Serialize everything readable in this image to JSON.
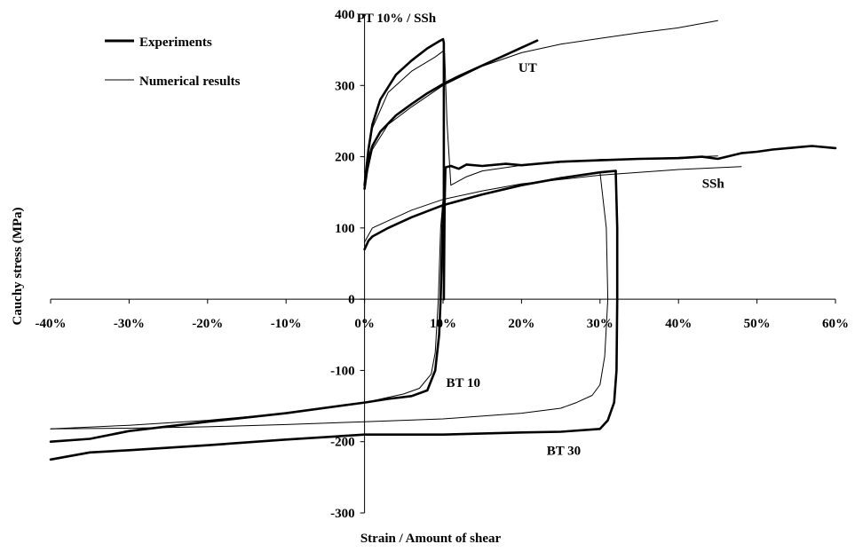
{
  "chart_data": {
    "type": "line",
    "xlabel": "Strain / Amount of shear",
    "ylabel": "Cauchy stress (MPa)",
    "xlim": [
      -0.4,
      0.6
    ],
    "ylim": [
      -300,
      400
    ],
    "x_ticks": [
      -0.4,
      -0.3,
      -0.2,
      -0.1,
      0.0,
      0.1,
      0.2,
      0.3,
      0.4,
      0.5,
      0.6
    ],
    "x_tick_labels": [
      "-40%",
      "-30%",
      "-20%",
      "-10%",
      "0%",
      "10%",
      "20%",
      "30%",
      "40%",
      "50%",
      "60%"
    ],
    "y_ticks": [
      -300,
      -200,
      -100,
      0,
      100,
      200,
      300,
      400
    ],
    "y_tick_labels": [
      "-300",
      "-200",
      "-100",
      "0",
      "100",
      "200",
      "300",
      "400"
    ],
    "legend": {
      "position": "top-left",
      "entries": [
        {
          "label": "Experiments",
          "style": "thick"
        },
        {
          "label": "Numerical results",
          "style": "thin"
        }
      ]
    },
    "annotations": [
      {
        "text": "PT 10% / SSh",
        "x": -0.01,
        "y": 395
      },
      {
        "text": "UT",
        "x": 0.196,
        "y": 325
      },
      {
        "text": "SSh",
        "x": 0.43,
        "y": 163
      },
      {
        "text": "BT 10",
        "x": 0.104,
        "y": -117
      },
      {
        "text": "BT 30",
        "x": 0.232,
        "y": -212
      }
    ],
    "series": [
      {
        "name": "Experiments",
        "style": "thick",
        "paths": [
          {
            "curve": "UT",
            "points": [
              [
                0,
                155
              ],
              [
                0.005,
                195
              ],
              [
                0.01,
                215
              ],
              [
                0.02,
                235
              ],
              [
                0.04,
                258
              ],
              [
                0.06,
                274
              ],
              [
                0.08,
                289
              ],
              [
                0.1,
                302
              ],
              [
                0.12,
                313
              ],
              [
                0.15,
                328
              ],
              [
                0.18,
                343
              ],
              [
                0.2,
                353
              ],
              [
                0.22,
                363
              ]
            ]
          },
          {
            "curve": "PT 10% / SSh",
            "points": [
              [
                0,
                160
              ],
              [
                0.005,
                210
              ],
              [
                0.01,
                245
              ],
              [
                0.02,
                280
              ],
              [
                0.04,
                315
              ],
              [
                0.06,
                335
              ],
              [
                0.08,
                352
              ],
              [
                0.095,
                362
              ],
              [
                0.1,
                365
              ],
              [
                0.101,
                360
              ],
              [
                0.101,
                0
              ],
              [
                0.102,
                135
              ],
              [
                0.103,
                185
              ],
              [
                0.11,
                187
              ],
              [
                0.12,
                183
              ],
              [
                0.13,
                189
              ],
              [
                0.15,
                187
              ],
              [
                0.18,
                190
              ],
              [
                0.2,
                188
              ],
              [
                0.25,
                193
              ],
              [
                0.3,
                195
              ],
              [
                0.35,
                197
              ],
              [
                0.4,
                198
              ],
              [
                0.43,
                200
              ],
              [
                0.45,
                197
              ],
              [
                0.48,
                205
              ],
              [
                0.5,
                207
              ],
              [
                0.52,
                210
              ],
              [
                0.55,
                213
              ],
              [
                0.57,
                215
              ],
              [
                0.6,
                212
              ]
            ]
          },
          {
            "curve": "SSh",
            "points": [
              [
                0,
                70
              ],
              [
                0.005,
                82
              ],
              [
                0.01,
                88
              ],
              [
                0.03,
                100
              ],
              [
                0.06,
                115
              ],
              [
                0.1,
                132
              ],
              [
                0.15,
                147
              ],
              [
                0.2,
                160
              ],
              [
                0.25,
                170
              ],
              [
                0.3,
                178
              ],
              [
                0.32,
                180
              ]
            ]
          },
          {
            "curve": "BT 30",
            "points": [
              [
                0.32,
                180
              ],
              [
                0.322,
                100
              ],
              [
                0.322,
                0
              ],
              [
                0.321,
                -100
              ],
              [
                0.318,
                -145
              ],
              [
                0.31,
                -170
              ],
              [
                0.3,
                -182
              ],
              [
                0.25,
                -186
              ],
              [
                0.2,
                -187
              ],
              [
                0.1,
                -190
              ],
              [
                0.0,
                -190
              ],
              [
                -0.1,
                -197
              ],
              [
                -0.2,
                -205
              ],
              [
                -0.3,
                -212
              ],
              [
                -0.35,
                -215
              ],
              [
                -0.4,
                -225
              ]
            ]
          },
          {
            "curve": "BT 10",
            "points": [
              [
                0.1,
                132
              ],
              [
                0.097,
                0
              ],
              [
                0.095,
                -50
              ],
              [
                0.09,
                -100
              ],
              [
                0.08,
                -128
              ],
              [
                0.06,
                -136
              ],
              [
                0.03,
                -140
              ],
              [
                0.0,
                -145
              ],
              [
                -0.1,
                -160
              ],
              [
                -0.2,
                -172
              ],
              [
                -0.3,
                -185
              ],
              [
                -0.35,
                -196
              ],
              [
                -0.4,
                -200
              ]
            ]
          }
        ]
      },
      {
        "name": "Numerical results",
        "style": "thin",
        "paths": [
          {
            "curve": "UT",
            "points": [
              [
                0,
                160
              ],
              [
                0.01,
                210
              ],
              [
                0.03,
                245
              ],
              [
                0.06,
                270
              ],
              [
                0.1,
                300
              ],
              [
                0.15,
                327
              ],
              [
                0.2,
                346
              ],
              [
                0.25,
                358
              ],
              [
                0.3,
                366
              ],
              [
                0.35,
                374
              ],
              [
                0.4,
                381
              ],
              [
                0.45,
                391
              ]
            ]
          },
          {
            "curve": "PT 10% / SSh",
            "points": [
              [
                0,
                170
              ],
              [
                0.01,
                240
              ],
              [
                0.03,
                290
              ],
              [
                0.06,
                320
              ],
              [
                0.09,
                340
              ],
              [
                0.1,
                348
              ],
              [
                0.102,
                345
              ],
              [
                0.105,
                250
              ],
              [
                0.11,
                160
              ],
              [
                0.13,
                172
              ],
              [
                0.15,
                180
              ],
              [
                0.2,
                188
              ],
              [
                0.25,
                192
              ],
              [
                0.3,
                196
              ],
              [
                0.35,
                197
              ],
              [
                0.4,
                199
              ],
              [
                0.45,
                201
              ]
            ]
          },
          {
            "curve": "SSh",
            "points": [
              [
                0,
                80
              ],
              [
                0.01,
                100
              ],
              [
                0.03,
                110
              ],
              [
                0.06,
                125
              ],
              [
                0.1,
                140
              ],
              [
                0.15,
                152
              ],
              [
                0.2,
                162
              ],
              [
                0.3,
                174
              ],
              [
                0.4,
                182
              ],
              [
                0.48,
                186
              ]
            ]
          },
          {
            "curve": "BT 10",
            "points": [
              [
                0.1,
                140
              ],
              [
                0.097,
                100
              ],
              [
                0.094,
                0
              ],
              [
                0.09,
                -75
              ],
              [
                0.085,
                -105
              ],
              [
                0.07,
                -125
              ],
              [
                0.05,
                -133
              ],
              [
                0.0,
                -145
              ],
              [
                -0.1,
                -160
              ],
              [
                -0.2,
                -170
              ],
              [
                -0.3,
                -177
              ],
              [
                -0.4,
                -182
              ]
            ]
          },
          {
            "curve": "BT 30",
            "points": [
              [
                0.3,
                178
              ],
              [
                0.308,
                100
              ],
              [
                0.31,
                0
              ],
              [
                0.306,
                -80
              ],
              [
                0.3,
                -120
              ],
              [
                0.29,
                -135
              ],
              [
                0.27,
                -145
              ],
              [
                0.25,
                -153
              ],
              [
                0.2,
                -160
              ],
              [
                0.1,
                -168
              ],
              [
                0.0,
                -172
              ],
              [
                -0.1,
                -176
              ],
              [
                -0.2,
                -179
              ],
              [
                -0.3,
                -181
              ],
              [
                -0.4,
                -182
              ]
            ]
          }
        ]
      }
    ]
  }
}
